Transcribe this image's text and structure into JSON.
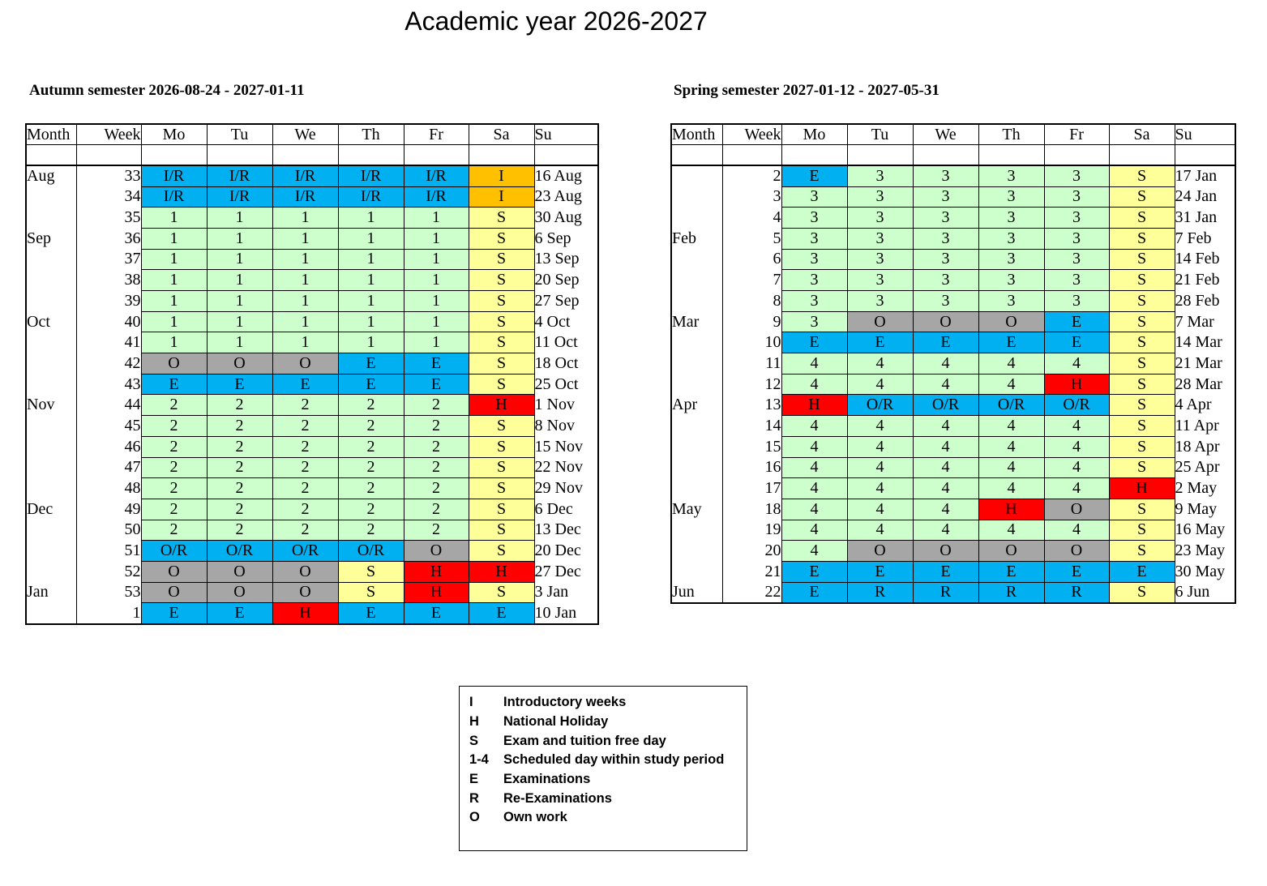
{
  "title": "Academic year 2026-2027",
  "colors": {
    "I/R": "#00b0f0",
    "I": "#ffc000",
    "S": "#ffff99",
    "1": "#ccffcc",
    "2": "#ccffcc",
    "3": "#ccffcc",
    "4": "#ccffcc",
    "O": "#a6a6a6",
    "E": "#00b0f0",
    "H": "#ff0000",
    "O/R": "#00b0f0",
    "R": "#00b0f0"
  },
  "columns": [
    "Month",
    "Week",
    "Mo",
    "Tu",
    "We",
    "Th",
    "Fr",
    "Sa",
    "Su"
  ],
  "autumn": {
    "title": "Autumn semester 2026-08-24 - 2027-01-11",
    "rows": [
      {
        "month": "Aug",
        "week": "33",
        "days": [
          "I/R",
          "I/R",
          "I/R",
          "I/R",
          "I/R",
          "I"
        ],
        "su": "16 Aug"
      },
      {
        "month": "",
        "week": "34",
        "days": [
          "I/R",
          "I/R",
          "I/R",
          "I/R",
          "I/R",
          "I"
        ],
        "su": "23 Aug"
      },
      {
        "month": "",
        "week": "35",
        "days": [
          "1",
          "1",
          "1",
          "1",
          "1",
          "S"
        ],
        "su": "30 Aug"
      },
      {
        "month": "Sep",
        "week": "36",
        "days": [
          "1",
          "1",
          "1",
          "1",
          "1",
          "S"
        ],
        "su": "6 Sep"
      },
      {
        "month": "",
        "week": "37",
        "days": [
          "1",
          "1",
          "1",
          "1",
          "1",
          "S"
        ],
        "su": "13 Sep"
      },
      {
        "month": "",
        "week": "38",
        "days": [
          "1",
          "1",
          "1",
          "1",
          "1",
          "S"
        ],
        "su": "20 Sep"
      },
      {
        "month": "",
        "week": "39",
        "days": [
          "1",
          "1",
          "1",
          "1",
          "1",
          "S"
        ],
        "su": "27 Sep"
      },
      {
        "month": "Oct",
        "week": "40",
        "days": [
          "1",
          "1",
          "1",
          "1",
          "1",
          "S"
        ],
        "su": "4 Oct"
      },
      {
        "month": "",
        "week": "41",
        "days": [
          "1",
          "1",
          "1",
          "1",
          "1",
          "S"
        ],
        "su": "11 Oct"
      },
      {
        "month": "",
        "week": "42",
        "days": [
          "O",
          "O",
          "O",
          "E",
          "E",
          "S"
        ],
        "su": "18 Oct"
      },
      {
        "month": "",
        "week": "43",
        "days": [
          "E",
          "E",
          "E",
          "E",
          "E",
          "S"
        ],
        "su": "25 Oct"
      },
      {
        "month": "Nov",
        "week": "44",
        "days": [
          "2",
          "2",
          "2",
          "2",
          "2",
          "H"
        ],
        "su": "1 Nov"
      },
      {
        "month": "",
        "week": "45",
        "days": [
          "2",
          "2",
          "2",
          "2",
          "2",
          "S"
        ],
        "su": "8 Nov"
      },
      {
        "month": "",
        "week": "46",
        "days": [
          "2",
          "2",
          "2",
          "2",
          "2",
          "S"
        ],
        "su": "15 Nov"
      },
      {
        "month": "",
        "week": "47",
        "days": [
          "2",
          "2",
          "2",
          "2",
          "2",
          "S"
        ],
        "su": "22 Nov"
      },
      {
        "month": "",
        "week": "48",
        "days": [
          "2",
          "2",
          "2",
          "2",
          "2",
          "S"
        ],
        "su": "29 Nov"
      },
      {
        "month": "Dec",
        "week": "49",
        "days": [
          "2",
          "2",
          "2",
          "2",
          "2",
          "S"
        ],
        "su": "6 Dec"
      },
      {
        "month": "",
        "week": "50",
        "days": [
          "2",
          "2",
          "2",
          "2",
          "2",
          "S"
        ],
        "su": "13 Dec"
      },
      {
        "month": "",
        "week": "51",
        "days": [
          "O/R",
          "O/R",
          "O/R",
          "O/R",
          "O",
          "S"
        ],
        "su": "20 Dec"
      },
      {
        "month": "",
        "week": "52",
        "days": [
          "O",
          "O",
          "O",
          "S",
          "H",
          "H"
        ],
        "su": "27 Dec"
      },
      {
        "month": "Jan",
        "week": "53",
        "days": [
          "O",
          "O",
          "O",
          "S",
          "H",
          "S"
        ],
        "su": "3 Jan"
      },
      {
        "month": "",
        "week": "1",
        "days": [
          "E",
          "E",
          "H",
          "E",
          "E",
          "E"
        ],
        "su": "10 Jan"
      }
    ]
  },
  "spring": {
    "title": "Spring semester  2027-01-12 - 2027-05-31",
    "rows": [
      {
        "month": "",
        "week": "2",
        "days": [
          "E",
          "3",
          "3",
          "3",
          "3",
          "S"
        ],
        "su": "17 Jan"
      },
      {
        "month": "",
        "week": "3",
        "days": [
          "3",
          "3",
          "3",
          "3",
          "3",
          "S"
        ],
        "su": "24 Jan"
      },
      {
        "month": "",
        "week": "4",
        "days": [
          "3",
          "3",
          "3",
          "3",
          "3",
          "S"
        ],
        "su": "31 Jan"
      },
      {
        "month": "Feb",
        "week": "5",
        "days": [
          "3",
          "3",
          "3",
          "3",
          "3",
          "S"
        ],
        "su": "7 Feb"
      },
      {
        "month": "",
        "week": "6",
        "days": [
          "3",
          "3",
          "3",
          "3",
          "3",
          "S"
        ],
        "su": "14 Feb"
      },
      {
        "month": "",
        "week": "7",
        "days": [
          "3",
          "3",
          "3",
          "3",
          "3",
          "S"
        ],
        "su": "21 Feb"
      },
      {
        "month": "",
        "week": "8",
        "days": [
          "3",
          "3",
          "3",
          "3",
          "3",
          "S"
        ],
        "su": "28 Feb"
      },
      {
        "month": "Mar",
        "week": "9",
        "days": [
          "3",
          "O",
          "O",
          "O",
          "E",
          "S"
        ],
        "su": "7 Mar"
      },
      {
        "month": "",
        "week": "10",
        "days": [
          "E",
          "E",
          "E",
          "E",
          "E",
          "S"
        ],
        "su": "14 Mar"
      },
      {
        "month": "",
        "week": "11",
        "days": [
          "4",
          "4",
          "4",
          "4",
          "4",
          "S"
        ],
        "su": "21 Mar"
      },
      {
        "month": "",
        "week": "12",
        "days": [
          "4",
          "4",
          "4",
          "4",
          "H",
          "S"
        ],
        "su": "28 Mar"
      },
      {
        "month": "Apr",
        "week": "13",
        "days": [
          "H",
          "O/R",
          "O/R",
          "O/R",
          "O/R",
          "S"
        ],
        "su": "4 Apr"
      },
      {
        "month": "",
        "week": "14",
        "days": [
          "4",
          "4",
          "4",
          "4",
          "4",
          "S"
        ],
        "su": "11 Apr"
      },
      {
        "month": "",
        "week": "15",
        "days": [
          "4",
          "4",
          "4",
          "4",
          "4",
          "S"
        ],
        "su": "18 Apr"
      },
      {
        "month": "",
        "week": "16",
        "days": [
          "4",
          "4",
          "4",
          "4",
          "4",
          "S"
        ],
        "su": "25 Apr"
      },
      {
        "month": "",
        "week": "17",
        "days": [
          "4",
          "4",
          "4",
          "4",
          "4",
          "H"
        ],
        "su": "2 May"
      },
      {
        "month": "May",
        "week": "18",
        "days": [
          "4",
          "4",
          "4",
          "H",
          "O",
          "S"
        ],
        "su": "9 May"
      },
      {
        "month": "",
        "week": "19",
        "days": [
          "4",
          "4",
          "4",
          "4",
          "4",
          "S"
        ],
        "su": "16 May"
      },
      {
        "month": "",
        "week": "20",
        "days": [
          "4",
          "O",
          "O",
          "O",
          "O",
          "S"
        ],
        "su": "23 May"
      },
      {
        "month": "",
        "week": "21",
        "days": [
          "E",
          "E",
          "E",
          "E",
          "E",
          "E"
        ],
        "su": "30 May"
      },
      {
        "month": "Jun",
        "week": "22",
        "days": [
          "E",
          "R",
          "R",
          "R",
          "R",
          "S"
        ],
        "su": "6 Jun"
      }
    ]
  },
  "legend": [
    {
      "code": "I",
      "label": "Introductory weeks"
    },
    {
      "code": "H",
      "label": "National Holiday"
    },
    {
      "code": "S",
      "label": "Exam and tuition free day"
    },
    {
      "code": "1-4",
      "label": "Scheduled day within study period"
    },
    {
      "code": "E",
      "label": "Examinations"
    },
    {
      "code": "R",
      "label": "Re-Examinations"
    },
    {
      "code": "O",
      "label": "Own work"
    }
  ]
}
